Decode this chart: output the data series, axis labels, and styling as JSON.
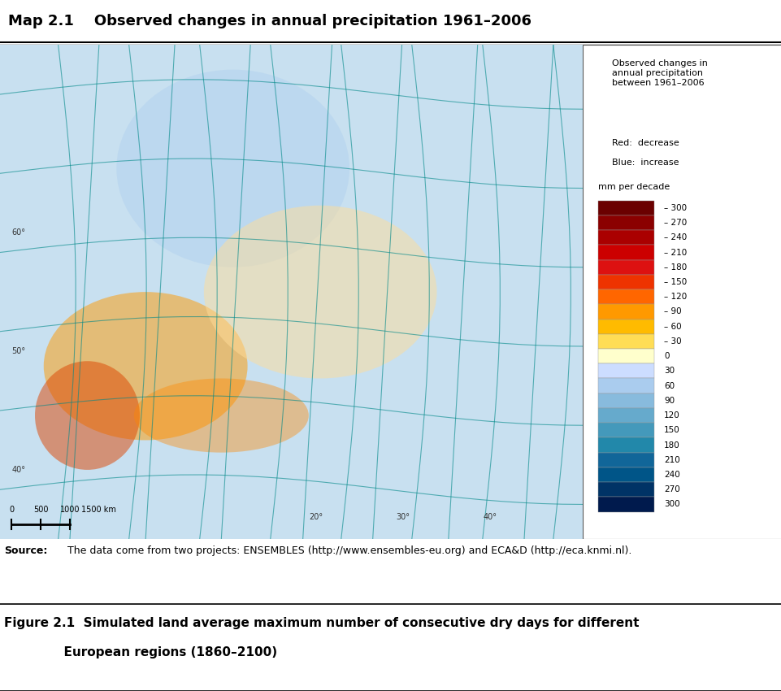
{
  "title": "Map 2.1    Observed changes in annual precipitation 1961–2006",
  "title_fontsize": 13,
  "map_bg_color": "#f5e8c0",
  "legend_title": "Observed changes in\nannual precipitation\nbetween 1961–2006",
  "legend_subtitle1": "Red:  decrease",
  "legend_subtitle2": "Blue:  increase",
  "legend_unit": "mm per decade",
  "legend_labels": [
    "– 300",
    "– 270",
    "– 240",
    "– 210",
    "– 180",
    "– 150",
    "– 120",
    "– 90",
    "– 60",
    "– 30",
    "0",
    "30",
    "60",
    "90",
    "120",
    "150",
    "180",
    "210",
    "240",
    "270",
    "300"
  ],
  "legend_colors": [
    "#6b0000",
    "#8b0000",
    "#aa0000",
    "#cc0000",
    "#dd1111",
    "#ee3300",
    "#ff6600",
    "#ff9900",
    "#ffbb00",
    "#ffdd55",
    "#ffffcc",
    "#ccddff",
    "#aaccee",
    "#88bbdd",
    "#66aacc",
    "#4499bb",
    "#2288aa",
    "#116699",
    "#005588",
    "#003366",
    "#001a4d"
  ],
  "source_label": "Source:",
  "source_text": "    The data come from two projects: ENSEMBLES (http://www.ensembles-eu.org) and ECA&D (http://eca.knmi.nl).",
  "figure_caption_line1": "Figure 2.1  Simulated land average maximum number of consecutive dry days for different",
  "figure_caption_line2": "              European regions (1860–2100)",
  "map_europe_bg": "#f0e6c8",
  "map_sea_color": "#c8e0f0",
  "top_rule_color": "#000000",
  "bottom_rule_color": "#000000",
  "figure_rule_color": "#000000"
}
